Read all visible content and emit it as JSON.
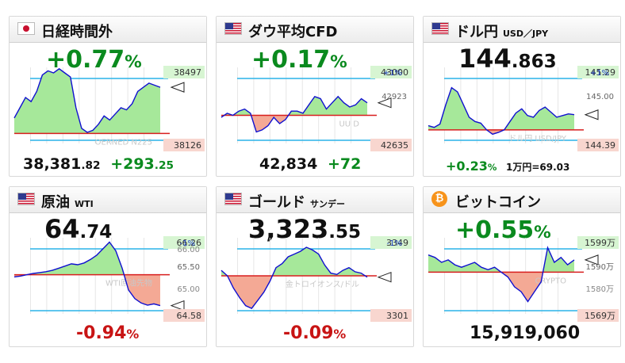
{
  "panels": [
    {
      "id": "nikkei",
      "title": "日経時間外",
      "subtitle": "",
      "flag": "jp-flag-icon",
      "change": "+0.77",
      "change_unit": "%",
      "tag_top": "38497",
      "tag_bottom": "38126",
      "watermark": "OERNED N225",
      "price_main": "38,381",
      "price_dec": ".82",
      "price_change": "+293",
      "price_change_dec": ".25",
      "pct_label": ""
    },
    {
      "id": "dow",
      "title": "ダウ平均CFD",
      "subtitle": "",
      "flag": "us-flag-icon",
      "change": "+0.17",
      "change_unit": "%",
      "tag_top": "43000",
      "tag_mid": "42923",
      "tag_bottom": "42635",
      "line_pct": "+1%",
      "watermark": "UU D",
      "price_main": "42,834",
      "price_change": "+72"
    },
    {
      "id": "usdjpy",
      "title": "ドル円",
      "subtitle": "USD／JPY",
      "flag": "us-flag-icon",
      "price_main": "144",
      "price_dec": ".863",
      "tag_top": "145.29",
      "tag_mid": "145.00",
      "tag_bottom": "144.39",
      "line_pct": "+1%",
      "watermark": "ドル円 USD/JPY",
      "foot_change": "+0.23",
      "foot_unit": "%",
      "foot_note": "1万円=69.03"
    },
    {
      "id": "wti",
      "title": "原油",
      "subtitle": "WTI",
      "flag": "us-flag-icon",
      "price_main": "64",
      "price_dec": ".74",
      "tag_top": "66.26",
      "tag_top2": "66.00",
      "tag_mid": "65.50",
      "tag_mid2": "65.00",
      "tag_bottom": "64.58",
      "line_pct": "-1%",
      "watermark": "WTI原油先物",
      "foot_change": "-0.94",
      "foot_unit": "%"
    },
    {
      "id": "gold",
      "title": "ゴールド",
      "subtitle": "サンデー",
      "flag": "us-flag-icon",
      "price_main": "3,323",
      "price_dec": ".55",
      "tag_top": "3349",
      "tag_bottom": "3301",
      "line_pct": "-1%",
      "watermark": "金トロイオンス/ドル",
      "foot_change": "-0.09",
      "foot_unit": "%"
    },
    {
      "id": "btc",
      "title": "ビットコイン",
      "subtitle": "",
      "flag": "bitcoin-icon",
      "flag_glyph": "₿",
      "change": "+0.55",
      "change_unit": "%",
      "tag_top": "1599万",
      "tag_mid": "1590万",
      "tag_mid2": "1580万",
      "tag_bottom": "1569万",
      "watermark": "CRYPTO",
      "price_main": "15,919,060"
    }
  ],
  "chart_data": [
    {
      "type": "line",
      "name": "日経時間外",
      "values": [
        38250,
        38300,
        38350,
        38330,
        38380,
        38460,
        38480,
        38470,
        38490,
        38470,
        38450,
        38300,
        38200,
        38180,
        38190,
        38220,
        38260,
        38240,
        38270,
        38300,
        38290,
        38320,
        38380,
        38400,
        38420,
        38410,
        38400
      ],
      "ylim": [
        38126,
        38497
      ],
      "baseline": 38175
    },
    {
      "type": "line",
      "name": "ダウ平均CFD",
      "values": [
        42760,
        42780,
        42770,
        42790,
        42800,
        42780,
        42690,
        42700,
        42720,
        42760,
        42730,
        42750,
        42790,
        42790,
        42780,
        42820,
        42860,
        42850,
        42800,
        42830,
        42860,
        42830,
        42810,
        42820,
        42850,
        42830
      ],
      "ylim": [
        42635,
        43000
      ],
      "baseline": 42770
    },
    {
      "type": "line",
      "name": "ドル円",
      "values": [
        144.6,
        144.58,
        144.62,
        144.85,
        145.05,
        145.0,
        144.85,
        144.7,
        144.65,
        144.63,
        144.55,
        144.5,
        144.52,
        144.55,
        144.65,
        144.75,
        144.8,
        144.72,
        144.7,
        144.78,
        144.82,
        144.76,
        144.7,
        144.72,
        144.74,
        144.73
      ],
      "ylim": [
        144.39,
        145.29
      ],
      "baseline": 144.55
    },
    {
      "type": "line",
      "name": "原油 WTI",
      "values": [
        65.4,
        65.42,
        65.45,
        65.48,
        65.5,
        65.52,
        65.55,
        65.6,
        65.65,
        65.7,
        65.68,
        65.72,
        65.8,
        65.9,
        66.05,
        66.2,
        66.0,
        65.6,
        65.1,
        64.9,
        64.8,
        64.75,
        64.78,
        64.74
      ],
      "ylim": [
        64.55,
        66.3
      ],
      "baseline": 65.45
    },
    {
      "type": "line",
      "name": "ゴールド",
      "values": [
        3328,
        3324,
        3315,
        3308,
        3302,
        3300,
        3306,
        3312,
        3320,
        3330,
        3333,
        3338,
        3340,
        3342,
        3345,
        3343,
        3340,
        3332,
        3326,
        3325,
        3328,
        3330,
        3327,
        3326,
        3323
      ],
      "ylim": [
        3296,
        3352
      ],
      "baseline": 3324
    },
    {
      "type": "line",
      "name": "ビットコイン",
      "values": [
        1593,
        1592,
        1590,
        1591,
        1589,
        1588,
        1589,
        1590,
        1588,
        1587,
        1588,
        1586,
        1584,
        1580,
        1578,
        1574,
        1578,
        1582,
        1596,
        1590,
        1592,
        1589,
        1591
      ],
      "ylim": [
        1569,
        1600
      ],
      "baseline": 1586
    }
  ]
}
